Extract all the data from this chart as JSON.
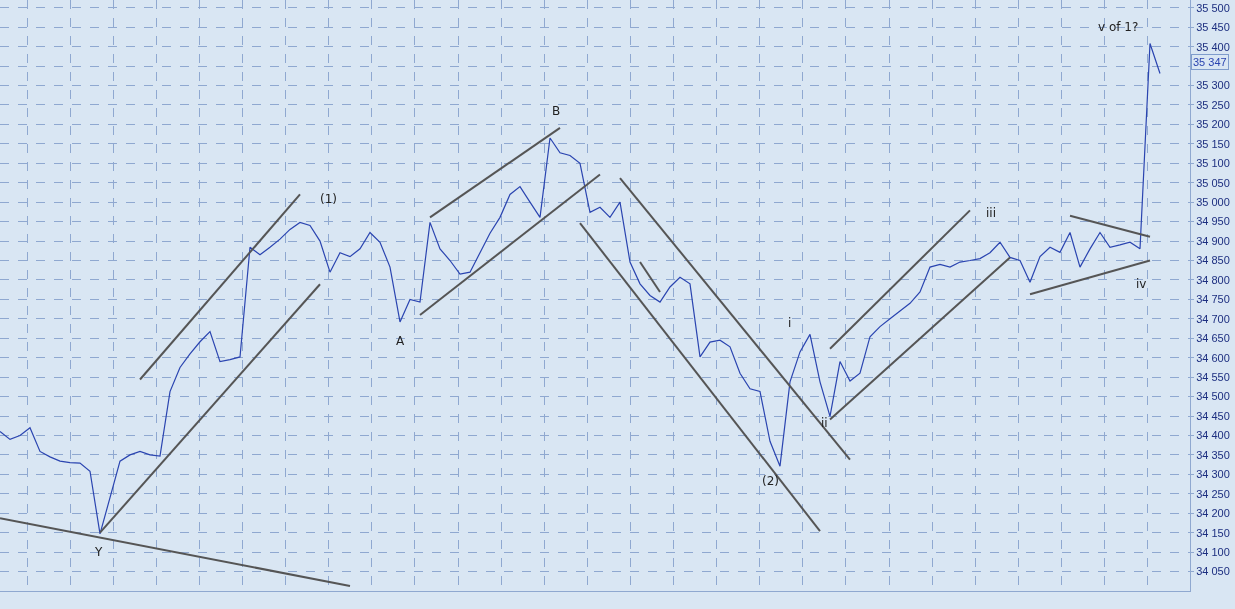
{
  "chart_data": {
    "type": "line",
    "tick_labels": "y",
    "grid": true,
    "ylim": [
      34000,
      35520
    ],
    "categories": [
      null,
      null,
      null,
      null,
      null,
      null,
      null,
      null,
      null,
      null,
      null,
      null,
      null,
      null,
      null,
      null,
      null,
      null,
      null,
      null,
      null,
      null,
      null,
      null,
      null,
      null,
      null,
      null,
      null,
      null,
      null,
      null,
      null,
      null,
      null,
      null,
      null,
      null,
      null,
      null,
      null,
      null,
      null,
      null,
      null,
      null,
      null,
      null,
      null,
      null,
      null,
      null,
      null,
      null,
      null,
      null,
      null,
      null,
      null,
      null,
      null,
      null,
      null,
      null,
      null,
      null,
      null,
      null,
      null,
      null,
      null,
      null,
      null,
      null,
      null,
      null,
      null,
      null,
      null,
      null,
      null,
      null,
      null,
      null,
      null,
      null,
      null,
      null,
      null,
      null,
      null,
      null,
      null,
      null,
      null,
      null,
      null,
      null,
      null,
      null,
      null,
      null,
      null,
      null,
      null,
      null,
      null,
      null,
      null,
      null,
      null,
      null,
      null,
      null,
      null,
      null,
      null
    ],
    "yticks": [
      {
        "value": 34050,
        "label": "34 050"
      },
      {
        "value": 34100,
        "label": "34 100"
      },
      {
        "value": 34150,
        "label": "34 150"
      },
      {
        "value": 34200,
        "label": "34 200"
      },
      {
        "value": 34250,
        "label": "34 250"
      },
      {
        "value": 34300,
        "label": "34 300"
      },
      {
        "value": 34350,
        "label": "34 350"
      },
      {
        "value": 34400,
        "label": "34 400"
      },
      {
        "value": 34450,
        "label": "34 450"
      },
      {
        "value": 34500,
        "label": "34 500"
      },
      {
        "value": 34550,
        "label": "34 550"
      },
      {
        "value": 34600,
        "label": "34 600"
      },
      {
        "value": 34650,
        "label": "34 650"
      },
      {
        "value": 34700,
        "label": "34 700"
      },
      {
        "value": 34750,
        "label": "34 750"
      },
      {
        "value": 34800,
        "label": "34 800"
      },
      {
        "value": 34850,
        "label": "34 850"
      },
      {
        "value": 34900,
        "label": "34 900"
      },
      {
        "value": 34950,
        "label": "34 950"
      },
      {
        "value": 35000,
        "label": "35 000"
      },
      {
        "value": 35050,
        "label": "35 050"
      },
      {
        "value": 35100,
        "label": "35 100"
      },
      {
        "value": 35150,
        "label": "35 150"
      },
      {
        "value": 35200,
        "label": "35 200"
      },
      {
        "value": 35250,
        "label": "35 250"
      },
      {
        "value": 35300,
        "label": "35 300"
      },
      {
        "value": 35350,
        "label": null
      },
      {
        "value": 35400,
        "label": "35 400"
      },
      {
        "value": 35450,
        "label": "35 450"
      },
      {
        "value": 35500,
        "label": "35 500"
      }
    ],
    "series": [
      {
        "color": "#2a44b0",
        "values": [
          34410,
          34390,
          34400,
          34420,
          34359,
          34345,
          34334,
          34330,
          34329,
          34308,
          34147,
          34240,
          34334,
          34350,
          34359,
          34350,
          34347,
          34513,
          34575,
          34610,
          34641,
          34667,
          34590,
          34595,
          34602,
          34884,
          34865,
          34884,
          34905,
          34930,
          34948,
          34940,
          34900,
          34820,
          34870,
          34860,
          34880,
          34922,
          34897,
          34833,
          34692,
          34750,
          34743,
          34948,
          34880,
          34850,
          34815,
          34820,
          34870,
          34920,
          34961,
          35020,
          35040,
          35000,
          34961,
          35165,
          35127,
          35120,
          35100,
          34974,
          34987,
          34961,
          35000,
          34846,
          34790,
          34760,
          34743,
          34782,
          34807,
          34790,
          34602,
          34640,
          34645,
          34628,
          34560,
          34520,
          34513,
          34385,
          34321,
          34538,
          34615,
          34660,
          34538,
          34449,
          34590,
          34540,
          34560,
          34654,
          34680,
          34700,
          34720,
          34740,
          34769,
          34833,
          34840,
          34833,
          34846,
          34850,
          34855,
          34870,
          34897,
          34858,
          34850,
          34794,
          34860,
          34884,
          34871,
          34922,
          34833,
          34880,
          34922,
          34884,
          34890,
          34897,
          34880,
          35408,
          35331
        ]
      },
      {
        "type": "line",
        "color": "#555555",
        "values": [
          34187,
          null,
          null,
          null,
          null,
          null,
          null,
          null,
          null,
          null,
          null,
          null,
          null,
          null,
          null,
          null,
          null,
          null,
          null,
          null,
          null,
          null,
          null,
          null,
          null,
          null,
          null,
          null,
          null,
          null,
          null,
          null,
          null,
          null,
          null,
          34013,
          null,
          null,
          null,
          null,
          null,
          null,
          null,
          null,
          null,
          null,
          null,
          null,
          null,
          null,
          null,
          null,
          null,
          null,
          null,
          null,
          null,
          null,
          null,
          null,
          null,
          null,
          null,
          null,
          null,
          null,
          null,
          null,
          null,
          null,
          null,
          null,
          null,
          null,
          null,
          null,
          null,
          null,
          null,
          null,
          null,
          null,
          null,
          null,
          null,
          null,
          null,
          null,
          null,
          null,
          null,
          null,
          null,
          null,
          null,
          null,
          null,
          null,
          null,
          null,
          null,
          null,
          null,
          null,
          null,
          null,
          null,
          null,
          null,
          null,
          null,
          null,
          null,
          null,
          null,
          null,
          null
        ]
      },
      {
        "type": "line",
        "color": "#555555",
        "values": [
          null,
          null,
          null,
          null,
          null,
          null,
          null,
          null,
          null,
          null,
          34150,
          null,
          null,
          null,
          null,
          null,
          null,
          null,
          null,
          null,
          null,
          null,
          null,
          null,
          null,
          null,
          null,
          null,
          null,
          null,
          null,
          null,
          34789,
          null,
          null,
          null,
          null,
          null,
          null,
          null,
          null,
          null,
          null,
          null,
          null,
          null,
          null,
          null,
          null,
          null,
          null,
          null,
          null,
          null,
          null,
          null,
          null,
          null,
          null,
          null,
          null,
          null,
          null,
          null,
          null,
          null,
          null,
          null,
          null,
          null,
          null,
          null,
          null,
          null,
          null,
          null,
          null,
          null,
          null,
          null,
          null,
          null,
          null,
          null,
          null,
          null,
          null,
          null,
          null,
          null,
          null,
          null,
          null,
          null,
          null,
          null,
          null,
          null,
          null,
          null,
          null,
          null,
          null,
          null,
          null,
          null,
          null,
          null,
          null,
          null,
          null,
          null,
          null,
          null,
          null,
          null,
          null
        ]
      },
      {
        "type": "line",
        "color": "#555555",
        "values": [
          null,
          null,
          null,
          null,
          null,
          null,
          null,
          null,
          null,
          null,
          null,
          null,
          null,
          null,
          34544,
          null,
          null,
          null,
          null,
          null,
          null,
          null,
          null,
          null,
          null,
          null,
          null,
          null,
          null,
          null,
          35020,
          null,
          null,
          null,
          null,
          null,
          null,
          null,
          null,
          null,
          null,
          null,
          null,
          null,
          null,
          null,
          null,
          null,
          null,
          null,
          null,
          null,
          null,
          null,
          null,
          null,
          null,
          null,
          null,
          null,
          null,
          null,
          null,
          null,
          null,
          null,
          null,
          null,
          null,
          null,
          null,
          null,
          null,
          null,
          null,
          null,
          null,
          null,
          null,
          null,
          null,
          null,
          null,
          null,
          null,
          null,
          null,
          null,
          null,
          null,
          null,
          null,
          null,
          null,
          null,
          null,
          null,
          null,
          null,
          null,
          null,
          null,
          null,
          null,
          null,
          null,
          null,
          null,
          null,
          null,
          null,
          null,
          null,
          null,
          null,
          null,
          null
        ]
      },
      {
        "type": "line",
        "color": "#555555",
        "values": [
          null,
          null,
          null,
          null,
          null,
          null,
          null,
          null,
          null,
          null,
          null,
          null,
          null,
          null,
          null,
          null,
          null,
          null,
          null,
          null,
          null,
          null,
          null,
          null,
          null,
          null,
          null,
          null,
          null,
          null,
          null,
          null,
          null,
          null,
          null,
          null,
          null,
          null,
          null,
          null,
          null,
          null,
          34710,
          null,
          null,
          null,
          null,
          null,
          null,
          null,
          null,
          null,
          null,
          null,
          null,
          null,
          null,
          null,
          null,
          null,
          35071,
          null,
          null,
          null,
          null,
          null,
          null,
          null,
          null,
          null,
          null,
          null,
          null,
          null,
          null,
          null,
          null,
          null,
          null,
          null,
          null,
          null,
          null,
          null,
          null,
          null,
          null,
          null,
          null,
          null,
          null,
          null,
          null,
          null,
          null,
          null,
          null,
          null,
          null,
          null,
          null,
          null,
          null,
          null,
          null,
          null,
          null,
          null,
          null,
          null,
          null,
          null,
          null,
          null,
          null,
          null,
          null
        ]
      },
      {
        "type": "line",
        "color": "#555555",
        "values": [
          null,
          null,
          null,
          null,
          null,
          null,
          null,
          null,
          null,
          null,
          null,
          null,
          null,
          null,
          null,
          null,
          null,
          null,
          null,
          null,
          null,
          null,
          null,
          null,
          null,
          null,
          null,
          null,
          null,
          null,
          null,
          null,
          null,
          null,
          null,
          null,
          null,
          null,
          null,
          null,
          null,
          null,
          null,
          34961,
          null,
          null,
          null,
          null,
          null,
          null,
          null,
          null,
          null,
          null,
          null,
          null,
          35191,
          null,
          null,
          null,
          null,
          null,
          null,
          null,
          null,
          null,
          null,
          null,
          null,
          null,
          null,
          null,
          null,
          null,
          null,
          null,
          null,
          null,
          null,
          null,
          null,
          null,
          null,
          null,
          null,
          null,
          null,
          null,
          null,
          null,
          null,
          null,
          null,
          null,
          null,
          null,
          null,
          null,
          null,
          null,
          null,
          null,
          null,
          null,
          null,
          null,
          null,
          null,
          null,
          null,
          null,
          null,
          null,
          null,
          null,
          null,
          null
        ]
      },
      {
        "type": "line",
        "color": "#555555",
        "values": [
          null,
          null,
          null,
          null,
          null,
          null,
          null,
          null,
          null,
          null,
          null,
          null,
          null,
          null,
          null,
          null,
          null,
          null,
          null,
          null,
          null,
          null,
          null,
          null,
          null,
          null,
          null,
          null,
          null,
          null,
          null,
          null,
          null,
          null,
          null,
          null,
          null,
          null,
          null,
          null,
          null,
          null,
          null,
          null,
          null,
          null,
          null,
          null,
          null,
          null,
          null,
          null,
          null,
          null,
          null,
          null,
          null,
          null,
          34946,
          null,
          null,
          null,
          null,
          null,
          null,
          null,
          null,
          null,
          null,
          null,
          null,
          null,
          null,
          null,
          null,
          null,
          null,
          null,
          null,
          null,
          null,
          null,
          34154,
          null,
          null,
          null,
          null,
          null,
          null,
          null,
          null,
          null,
          null,
          null,
          null,
          null,
          null,
          null,
          null,
          null,
          null,
          null,
          null,
          null,
          null,
          null,
          null,
          null,
          null,
          null,
          null,
          null,
          null,
          null,
          null,
          null,
          null
        ]
      },
      {
        "type": "line",
        "color": "#555555",
        "values": [
          null,
          null,
          null,
          null,
          null,
          null,
          null,
          null,
          null,
          null,
          null,
          null,
          null,
          null,
          null,
          null,
          null,
          null,
          null,
          null,
          null,
          null,
          null,
          null,
          null,
          null,
          null,
          null,
          null,
          null,
          null,
          null,
          null,
          null,
          null,
          null,
          null,
          null,
          null,
          null,
          null,
          null,
          null,
          null,
          null,
          null,
          null,
          null,
          null,
          null,
          null,
          null,
          null,
          null,
          null,
          null,
          null,
          null,
          null,
          null,
          null,
          null,
          35062,
          null,
          null,
          null,
          null,
          null,
          null,
          null,
          null,
          null,
          null,
          null,
          null,
          null,
          null,
          null,
          null,
          null,
          null,
          null,
          null,
          null,
          null,
          34338,
          null,
          null,
          null,
          null,
          null,
          null,
          null,
          null,
          null,
          null,
          null,
          null,
          null,
          null,
          null,
          null,
          null,
          null,
          null,
          null,
          null,
          null,
          null,
          null,
          null,
          null,
          null,
          null,
          null,
          null,
          null
        ]
      },
      {
        "type": "line",
        "color": "#555555",
        "values": [
          null,
          null,
          null,
          null,
          null,
          null,
          null,
          null,
          null,
          null,
          null,
          null,
          null,
          null,
          null,
          null,
          null,
          null,
          null,
          null,
          null,
          null,
          null,
          null,
          null,
          null,
          null,
          null,
          null,
          null,
          null,
          null,
          null,
          null,
          null,
          null,
          null,
          null,
          null,
          null,
          null,
          null,
          null,
          null,
          null,
          null,
          null,
          null,
          null,
          null,
          null,
          null,
          null,
          null,
          null,
          null,
          null,
          null,
          null,
          null,
          null,
          null,
          null,
          null,
          34846,
          null,
          34769,
          null,
          null,
          null,
          null,
          null,
          null,
          null,
          null,
          null,
          null,
          null,
          null,
          null,
          null,
          null,
          null,
          null,
          null,
          null,
          null,
          null,
          null,
          null,
          null,
          null,
          null,
          null,
          null,
          null,
          null,
          null,
          null,
          null,
          null,
          null,
          null,
          null,
          null,
          null,
          null,
          null,
          null,
          null,
          null,
          null,
          null,
          null,
          null,
          null,
          null
        ]
      },
      {
        "type": "line",
        "color": "#555555",
        "values": [
          null,
          null,
          null,
          null,
          null,
          null,
          null,
          null,
          null,
          null,
          null,
          null,
          null,
          null,
          null,
          null,
          null,
          null,
          null,
          null,
          null,
          null,
          null,
          null,
          null,
          null,
          null,
          null,
          null,
          null,
          null,
          null,
          null,
          null,
          null,
          null,
          null,
          null,
          null,
          null,
          null,
          null,
          null,
          null,
          null,
          null,
          null,
          null,
          null,
          null,
          null,
          null,
          null,
          null,
          null,
          null,
          null,
          null,
          null,
          null,
          null,
          null,
          null,
          null,
          null,
          null,
          null,
          null,
          null,
          null,
          null,
          null,
          null,
          null,
          null,
          null,
          null,
          null,
          null,
          null,
          null,
          null,
          null,
          34441,
          null,
          null,
          null,
          null,
          null,
          null,
          null,
          null,
          null,
          null,
          null,
          null,
          null,
          null,
          null,
          null,
          null,
          34858,
          null,
          null,
          null,
          null,
          null,
          null,
          null,
          null,
          null,
          null,
          null,
          null,
          null,
          null,
          null
        ]
      },
      {
        "type": "line",
        "color": "#555555",
        "values": [
          null,
          null,
          null,
          null,
          null,
          null,
          null,
          null,
          null,
          null,
          null,
          null,
          null,
          null,
          null,
          null,
          null,
          null,
          null,
          null,
          null,
          null,
          null,
          null,
          null,
          null,
          null,
          null,
          null,
          null,
          null,
          null,
          null,
          null,
          null,
          null,
          null,
          null,
          null,
          null,
          null,
          null,
          null,
          null,
          null,
          null,
          null,
          null,
          null,
          null,
          null,
          null,
          null,
          null,
          null,
          null,
          null,
          null,
          null,
          null,
          null,
          null,
          null,
          null,
          null,
          null,
          null,
          null,
          null,
          null,
          null,
          null,
          null,
          null,
          null,
          null,
          null,
          null,
          null,
          null,
          null,
          null,
          null,
          34623,
          null,
          null,
          null,
          null,
          null,
          null,
          null,
          null,
          null,
          null,
          null,
          null,
          null,
          34979,
          null,
          null,
          null,
          null,
          null,
          null,
          null,
          null,
          null,
          null,
          null,
          null,
          null,
          null,
          null,
          null,
          null,
          null,
          null
        ]
      },
      {
        "type": "line",
        "color": "#555555",
        "values": [
          null,
          null,
          null,
          null,
          null,
          null,
          null,
          null,
          null,
          null,
          null,
          null,
          null,
          null,
          null,
          null,
          null,
          null,
          null,
          null,
          null,
          null,
          null,
          null,
          null,
          null,
          null,
          null,
          null,
          null,
          null,
          null,
          null,
          null,
          null,
          null,
          null,
          null,
          null,
          null,
          null,
          null,
          null,
          null,
          null,
          null,
          null,
          null,
          null,
          null,
          null,
          null,
          null,
          null,
          null,
          null,
          null,
          null,
          null,
          null,
          null,
          null,
          null,
          null,
          null,
          null,
          null,
          null,
          null,
          null,
          null,
          null,
          null,
          null,
          null,
          null,
          null,
          null,
          null,
          null,
          null,
          null,
          null,
          null,
          null,
          null,
          null,
          null,
          null,
          null,
          null,
          null,
          null,
          null,
          null,
          null,
          null,
          null,
          null,
          null,
          null,
          null,
          null,
          34763,
          null,
          null,
          null,
          null,
          null,
          null,
          null,
          null,
          null,
          null,
          null,
          34850,
          null
        ]
      },
      {
        "type": "line",
        "color": "#555555",
        "values": [
          null,
          null,
          null,
          null,
          null,
          null,
          null,
          null,
          null,
          null,
          null,
          null,
          null,
          null,
          null,
          null,
          null,
          null,
          null,
          null,
          null,
          null,
          null,
          null,
          null,
          null,
          null,
          null,
          null,
          null,
          null,
          null,
          null,
          null,
          null,
          null,
          null,
          null,
          null,
          null,
          null,
          null,
          null,
          null,
          null,
          null,
          null,
          null,
          null,
          null,
          null,
          null,
          null,
          null,
          null,
          null,
          null,
          null,
          null,
          null,
          null,
          null,
          null,
          null,
          null,
          null,
          null,
          null,
          null,
          null,
          null,
          null,
          null,
          null,
          null,
          null,
          null,
          null,
          null,
          null,
          null,
          null,
          null,
          null,
          null,
          null,
          null,
          null,
          null,
          null,
          null,
          null,
          null,
          null,
          null,
          null,
          null,
          null,
          null,
          null,
          null,
          null,
          null,
          null,
          null,
          null,
          null,
          34965,
          null,
          null,
          null,
          null,
          null,
          null,
          null,
          34911,
          null
        ]
      }
    ],
    "annotations": [
      "Y",
      "(1)",
      "A",
      "B",
      "(2)",
      "i",
      "ii",
      "iii",
      "iv",
      "v of 1?",
      "35 347"
    ]
  }
}
